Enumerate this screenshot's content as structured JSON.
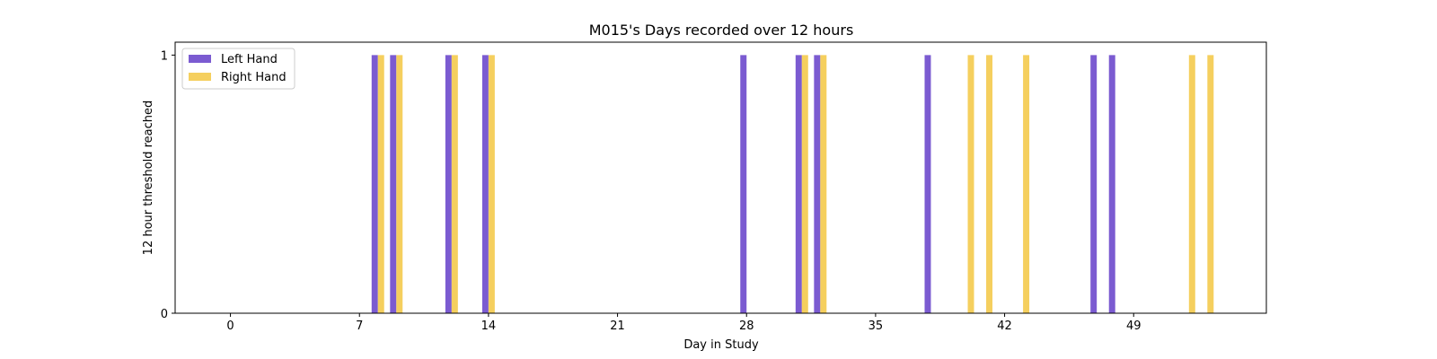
{
  "chart_data": {
    "type": "bar",
    "title": "M015's Days recorded over 12 hours",
    "xlabel": "Day in Study",
    "ylabel": "12 hour threshold reached",
    "xlim": [
      -3,
      56.2
    ],
    "ylim": [
      0,
      1.05
    ],
    "xticks": [
      0,
      7,
      14,
      21,
      28,
      35,
      42,
      49
    ],
    "yticks": [
      0,
      1
    ],
    "legend_position": "upper-left",
    "series": [
      {
        "name": "Left Hand",
        "color": "#7b5bd1",
        "days": [
          8,
          9,
          12,
          14,
          28,
          31,
          32,
          38,
          47,
          48
        ],
        "values": [
          1,
          1,
          1,
          1,
          1,
          1,
          1,
          1,
          1,
          1
        ]
      },
      {
        "name": "Right Hand",
        "color": "#f5cf5e",
        "days": [
          8,
          9,
          12,
          14,
          31,
          32,
          40,
          41,
          43,
          52,
          53
        ],
        "values": [
          1,
          1,
          1,
          1,
          1,
          1,
          1,
          1,
          1,
          1,
          1
        ]
      }
    ]
  }
}
